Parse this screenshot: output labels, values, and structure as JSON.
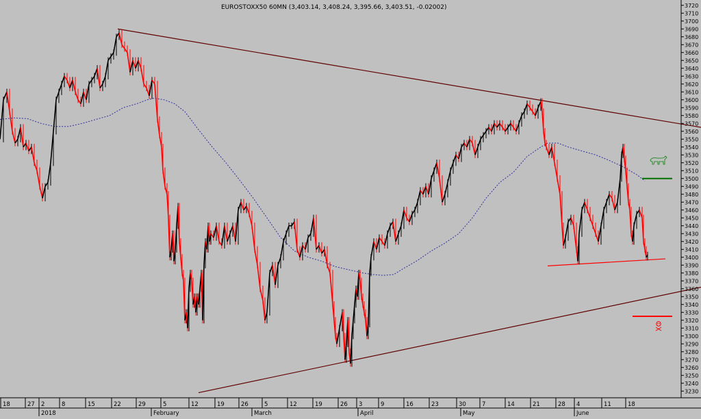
{
  "chart_data": {
    "type": "line",
    "title": "EUROSTOXX50 60MN (3,403.14, 3,408.24, 3,395.66, 3,403.51, -0.02002)",
    "xlabel": "",
    "ylabel": "",
    "ylim": [
      3225,
      3725
    ],
    "grid": false,
    "y_ticks": [
      3720,
      3710,
      3700,
      3690,
      3680,
      3670,
      3660,
      3650,
      3640,
      3630,
      3620,
      3610,
      3600,
      3590,
      3580,
      3570,
      3560,
      3550,
      3540,
      3530,
      3520,
      3510,
      3500,
      3490,
      3480,
      3470,
      3460,
      3450,
      3440,
      3430,
      3420,
      3410,
      3400,
      3390,
      3380,
      3370,
      3360,
      3350,
      3340,
      3330,
      3320,
      3310,
      3300,
      3290,
      3280,
      3270,
      3260,
      3250,
      3240,
      3230
    ],
    "x_ticks": [
      "18",
      "27",
      "2",
      "8",
      "15",
      "22",
      "29",
      "5",
      "12",
      "19",
      "26",
      "5",
      "12",
      "19",
      "26",
      "3",
      "9",
      "16",
      "23",
      "30",
      "7",
      "14",
      "21",
      "28",
      "4",
      "11",
      "18"
    ],
    "month_labels": [
      "2018",
      "February",
      "March",
      "April",
      "May",
      "June"
    ],
    "price_path": [
      [
        0,
        3550
      ],
      [
        5,
        3600
      ],
      [
        10,
        3610
      ],
      [
        14,
        3585
      ],
      [
        18,
        3560
      ],
      [
        22,
        3545
      ],
      [
        26,
        3550
      ],
      [
        30,
        3565
      ],
      [
        34,
        3540
      ],
      [
        38,
        3545
      ],
      [
        42,
        3535
      ],
      [
        46,
        3540
      ],
      [
        50,
        3520
      ],
      [
        54,
        3510
      ],
      [
        58,
        3490
      ],
      [
        62,
        3475
      ],
      [
        66,
        3490
      ],
      [
        70,
        3495
      ],
      [
        74,
        3520
      ],
      [
        78,
        3560
      ],
      [
        82,
        3600
      ],
      [
        86,
        3610
      ],
      [
        90,
        3620
      ],
      [
        94,
        3630
      ],
      [
        98,
        3625
      ],
      [
        102,
        3615
      ],
      [
        106,
        3625
      ],
      [
        110,
        3610
      ],
      [
        114,
        3600
      ],
      [
        118,
        3595
      ],
      [
        122,
        3610
      ],
      [
        126,
        3600
      ],
      [
        130,
        3620
      ],
      [
        134,
        3625
      ],
      [
        138,
        3630
      ],
      [
        142,
        3640
      ],
      [
        146,
        3615
      ],
      [
        150,
        3620
      ],
      [
        154,
        3630
      ],
      [
        158,
        3650
      ],
      [
        162,
        3655
      ],
      [
        166,
        3660
      ],
      [
        170,
        3680
      ],
      [
        174,
        3685
      ],
      [
        178,
        3670
      ],
      [
        182,
        3665
      ],
      [
        186,
        3660
      ],
      [
        190,
        3635
      ],
      [
        194,
        3650
      ],
      [
        198,
        3640
      ],
      [
        202,
        3650
      ],
      [
        206,
        3640
      ],
      [
        210,
        3620
      ],
      [
        214,
        3615
      ],
      [
        218,
        3605
      ],
      [
        222,
        3625
      ],
      [
        226,
        3620
      ],
      [
        230,
        3575
      ],
      [
        233,
        3555
      ],
      [
        236,
        3540
      ],
      [
        238,
        3510
      ],
      [
        241,
        3490
      ],
      [
        244,
        3480
      ],
      [
        246,
        3450
      ],
      [
        248,
        3400
      ],
      [
        250,
        3410
      ],
      [
        252,
        3430
      ],
      [
        254,
        3395
      ],
      [
        256,
        3410
      ],
      [
        258,
        3440
      ],
      [
        260,
        3465
      ],
      [
        262,
        3420
      ],
      [
        264,
        3400
      ],
      [
        266,
        3380
      ],
      [
        268,
        3370
      ],
      [
        270,
        3320
      ],
      [
        272,
        3330
      ],
      [
        274,
        3310
      ],
      [
        276,
        3360
      ],
      [
        278,
        3380
      ],
      [
        280,
        3370
      ],
      [
        282,
        3340
      ],
      [
        284,
        3350
      ],
      [
        286,
        3330
      ],
      [
        288,
        3350
      ],
      [
        290,
        3340
      ],
      [
        292,
        3360
      ],
      [
        294,
        3380
      ],
      [
        296,
        3320
      ],
      [
        298,
        3390
      ],
      [
        300,
        3420
      ],
      [
        302,
        3410
      ],
      [
        304,
        3440
      ],
      [
        306,
        3420
      ],
      [
        308,
        3430
      ],
      [
        312,
        3425
      ],
      [
        316,
        3440
      ],
      [
        320,
        3420
      ],
      [
        324,
        3415
      ],
      [
        328,
        3440
      ],
      [
        332,
        3420
      ],
      [
        336,
        3430
      ],
      [
        340,
        3440
      ],
      [
        344,
        3420
      ],
      [
        348,
        3460
      ],
      [
        352,
        3470
      ],
      [
        356,
        3460
      ],
      [
        360,
        3465
      ],
      [
        364,
        3455
      ],
      [
        368,
        3440
      ],
      [
        372,
        3410
      ],
      [
        376,
        3390
      ],
      [
        380,
        3360
      ],
      [
        384,
        3345
      ],
      [
        387,
        3320
      ],
      [
        390,
        3330
      ],
      [
        394,
        3380
      ],
      [
        398,
        3390
      ],
      [
        402,
        3365
      ],
      [
        406,
        3390
      ],
      [
        410,
        3400
      ],
      [
        414,
        3420
      ],
      [
        418,
        3430
      ],
      [
        422,
        3440
      ],
      [
        426,
        3440
      ],
      [
        430,
        3445
      ],
      [
        434,
        3410
      ],
      [
        438,
        3400
      ],
      [
        442,
        3415
      ],
      [
        446,
        3410
      ],
      [
        450,
        3425
      ],
      [
        454,
        3430
      ],
      [
        458,
        3450
      ],
      [
        462,
        3410
      ],
      [
        466,
        3415
      ],
      [
        470,
        3405
      ],
      [
        474,
        3410
      ],
      [
        478,
        3390
      ],
      [
        482,
        3380
      ],
      [
        486,
        3340
      ],
      [
        488,
        3320
      ],
      [
        490,
        3300
      ],
      [
        492,
        3290
      ],
      [
        496,
        3310
      ],
      [
        500,
        3330
      ],
      [
        502,
        3300
      ],
      [
        504,
        3270
      ],
      [
        506,
        3290
      ],
      [
        508,
        3320
      ],
      [
        510,
        3280
      ],
      [
        512,
        3265
      ],
      [
        514,
        3300
      ],
      [
        516,
        3320
      ],
      [
        518,
        3340
      ],
      [
        520,
        3360
      ],
      [
        522,
        3350
      ],
      [
        524,
        3380
      ],
      [
        526,
        3370
      ],
      [
        528,
        3350
      ],
      [
        530,
        3340
      ],
      [
        532,
        3330
      ],
      [
        534,
        3320
      ],
      [
        536,
        3300
      ],
      [
        538,
        3315
      ],
      [
        540,
        3380
      ],
      [
        542,
        3400
      ],
      [
        546,
        3420
      ],
      [
        550,
        3410
      ],
      [
        554,
        3425
      ],
      [
        558,
        3420
      ],
      [
        562,
        3415
      ],
      [
        566,
        3430
      ],
      [
        570,
        3440
      ],
      [
        574,
        3445
      ],
      [
        578,
        3420
      ],
      [
        582,
        3430
      ],
      [
        586,
        3440
      ],
      [
        590,
        3460
      ],
      [
        594,
        3450
      ],
      [
        598,
        3445
      ],
      [
        602,
        3455
      ],
      [
        606,
        3460
      ],
      [
        610,
        3470
      ],
      [
        614,
        3485
      ],
      [
        618,
        3480
      ],
      [
        622,
        3490
      ],
      [
        626,
        3480
      ],
      [
        630,
        3500
      ],
      [
        634,
        3510
      ],
      [
        638,
        3520
      ],
      [
        642,
        3500
      ],
      [
        646,
        3470
      ],
      [
        650,
        3480
      ],
      [
        654,
        3495
      ],
      [
        658,
        3510
      ],
      [
        662,
        3520
      ],
      [
        666,
        3530
      ],
      [
        670,
        3525
      ],
      [
        674,
        3540
      ],
      [
        678,
        3545
      ],
      [
        682,
        3540
      ],
      [
        686,
        3550
      ],
      [
        690,
        3545
      ],
      [
        694,
        3530
      ],
      [
        698,
        3540
      ],
      [
        702,
        3550
      ],
      [
        706,
        3555
      ],
      [
        710,
        3560
      ],
      [
        714,
        3565
      ],
      [
        718,
        3560
      ],
      [
        722,
        3570
      ],
      [
        726,
        3565
      ],
      [
        730,
        3570
      ],
      [
        734,
        3565
      ],
      [
        738,
        3560
      ],
      [
        742,
        3565
      ],
      [
        746,
        3570
      ],
      [
        750,
        3565
      ],
      [
        754,
        3560
      ],
      [
        758,
        3570
      ],
      [
        762,
        3580
      ],
      [
        766,
        3585
      ],
      [
        770,
        3595
      ],
      [
        774,
        3590
      ],
      [
        778,
        3585
      ],
      [
        782,
        3580
      ],
      [
        786,
        3590
      ],
      [
        790,
        3598
      ],
      [
        792,
        3585
      ],
      [
        794,
        3560
      ],
      [
        796,
        3545
      ],
      [
        798,
        3540
      ],
      [
        802,
        3530
      ],
      [
        806,
        3540
      ],
      [
        810,
        3520
      ],
      [
        814,
        3500
      ],
      [
        818,
        3480
      ],
      [
        821,
        3440
      ],
      [
        823,
        3415
      ],
      [
        826,
        3425
      ],
      [
        830,
        3445
      ],
      [
        834,
        3450
      ],
      [
        838,
        3440
      ],
      [
        842,
        3410
      ],
      [
        844,
        3395
      ],
      [
        846,
        3430
      ],
      [
        850,
        3460
      ],
      [
        854,
        3470
      ],
      [
        858,
        3460
      ],
      [
        862,
        3450
      ],
      [
        866,
        3440
      ],
      [
        870,
        3430
      ],
      [
        874,
        3420
      ],
      [
        878,
        3440
      ],
      [
        882,
        3460
      ],
      [
        886,
        3470
      ],
      [
        890,
        3480
      ],
      [
        894,
        3475
      ],
      [
        898,
        3460
      ],
      [
        902,
        3470
      ],
      [
        906,
        3500
      ],
      [
        908,
        3530
      ],
      [
        910,
        3540
      ],
      [
        912,
        3525
      ],
      [
        914,
        3510
      ],
      [
        916,
        3490
      ],
      [
        918,
        3470
      ],
      [
        920,
        3460
      ],
      [
        922,
        3430
      ],
      [
        924,
        3420
      ],
      [
        926,
        3440
      ],
      [
        930,
        3455
      ],
      [
        934,
        3460
      ],
      [
        938,
        3450
      ],
      [
        940,
        3420
      ],
      [
        942,
        3410
      ],
      [
        944,
        3400
      ],
      [
        946,
        3403
      ]
    ],
    "moving_average": [
      [
        0,
        3575
      ],
      [
        20,
        3577
      ],
      [
        40,
        3576
      ],
      [
        60,
        3570
      ],
      [
        80,
        3566
      ],
      [
        100,
        3566
      ],
      [
        120,
        3570
      ],
      [
        140,
        3575
      ],
      [
        160,
        3580
      ],
      [
        180,
        3590
      ],
      [
        200,
        3595
      ],
      [
        215,
        3600
      ],
      [
        225,
        3602
      ],
      [
        240,
        3600
      ],
      [
        255,
        3595
      ],
      [
        270,
        3585
      ],
      [
        290,
        3562
      ],
      [
        310,
        3540
      ],
      [
        330,
        3520
      ],
      [
        350,
        3498
      ],
      [
        370,
        3475
      ],
      [
        390,
        3450
      ],
      [
        410,
        3425
      ],
      [
        430,
        3408
      ],
      [
        450,
        3400
      ],
      [
        470,
        3395
      ],
      [
        490,
        3388
      ],
      [
        510,
        3384
      ],
      [
        530,
        3380
      ],
      [
        545,
        3378
      ],
      [
        560,
        3377
      ],
      [
        575,
        3378
      ],
      [
        590,
        3386
      ],
      [
        610,
        3396
      ],
      [
        630,
        3408
      ],
      [
        650,
        3418
      ],
      [
        670,
        3430
      ],
      [
        690,
        3450
      ],
      [
        710,
        3475
      ],
      [
        730,
        3495
      ],
      [
        750,
        3508
      ],
      [
        770,
        3528
      ],
      [
        790,
        3540
      ],
      [
        800,
        3545
      ],
      [
        815,
        3545
      ],
      [
        830,
        3540
      ],
      [
        850,
        3535
      ],
      [
        870,
        3530
      ],
      [
        890,
        3523
      ],
      [
        910,
        3515
      ],
      [
        930,
        3505
      ],
      [
        942,
        3497
      ]
    ],
    "trendlines": [
      {
        "from": [
          172,
          3690
        ],
        "to": [
          1024,
          3565
        ],
        "color": "#600000"
      },
      {
        "from": [
          290,
          3228
        ],
        "to": [
          1024,
          3362
        ],
        "color": "#600000"
      },
      {
        "from": [
          800,
          3389
        ],
        "to": [
          972,
          3398
        ],
        "color": "#ff0000"
      }
    ],
    "levels": [
      {
        "value": 3500,
        "x_from": 938,
        "x_to": 982,
        "color": "#007000"
      },
      {
        "value": 3325,
        "x_from": 924,
        "x_to": 982,
        "color": "#ff0000"
      }
    ],
    "colors": {
      "background": "#c0c0c0",
      "price_up": "#000000",
      "price_down": "#ff0000",
      "moving_average": "#3030a0",
      "bull_marker": "#008000",
      "skull_marker": "#ff0000"
    }
  }
}
